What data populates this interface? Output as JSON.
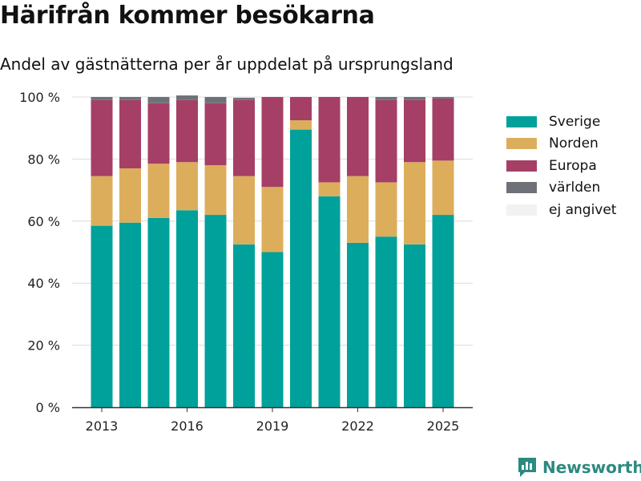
{
  "header": {
    "title": "Härifrån kommer besökarna",
    "subtitle": "Andel av gästnätterna per år uppdelat på ursprungsland"
  },
  "brand": {
    "name": "Newsworthy",
    "icon": "bar-chart-logo-icon",
    "color": "#2c8a80"
  },
  "chart_data": {
    "type": "bar",
    "stacked": true,
    "categories": [
      "2013",
      "2014",
      "2015",
      "2016",
      "2017",
      "2018",
      "2019",
      "2020",
      "2021",
      "2022",
      "2023",
      "2024",
      "2025"
    ],
    "x_tick_labels": [
      "2013",
      "2016",
      "2019",
      "2022",
      "2025"
    ],
    "y_tick_labels": [
      "0 %",
      "20 %",
      "40 %",
      "60 %",
      "80 %",
      "100 %"
    ],
    "ylim": [
      0,
      100
    ],
    "grid": true,
    "legend_position": "right",
    "series": [
      {
        "name": "Sverige",
        "color": "#00a19a",
        "values": [
          58.5,
          59.5,
          61,
          63.5,
          62,
          52.5,
          50,
          89.5,
          68,
          53,
          55,
          52.5,
          62
        ]
      },
      {
        "name": "Norden",
        "color": "#dcae5c",
        "values": [
          16,
          17.5,
          17.5,
          15.5,
          16,
          22,
          21,
          3,
          4.5,
          21.5,
          17.5,
          26.5,
          17.5
        ]
      },
      {
        "name": "Europa",
        "color": "#a53f66",
        "values": [
          24.5,
          22,
          19.5,
          20,
          20,
          24.5,
          29,
          7.5,
          27.5,
          25.5,
          26.5,
          20,
          20
        ]
      },
      {
        "name": "världen",
        "color": "#6e7278",
        "values": [
          1,
          1,
          2,
          1.5,
          2,
          0.8,
          0,
          0,
          0,
          0,
          1,
          1,
          0.5
        ]
      },
      {
        "name": "ej angivet",
        "color": "#f2f2f2",
        "values": [
          0,
          0,
          0,
          0,
          0,
          0.2,
          0,
          0,
          0,
          0,
          0,
          0,
          0
        ]
      }
    ]
  }
}
